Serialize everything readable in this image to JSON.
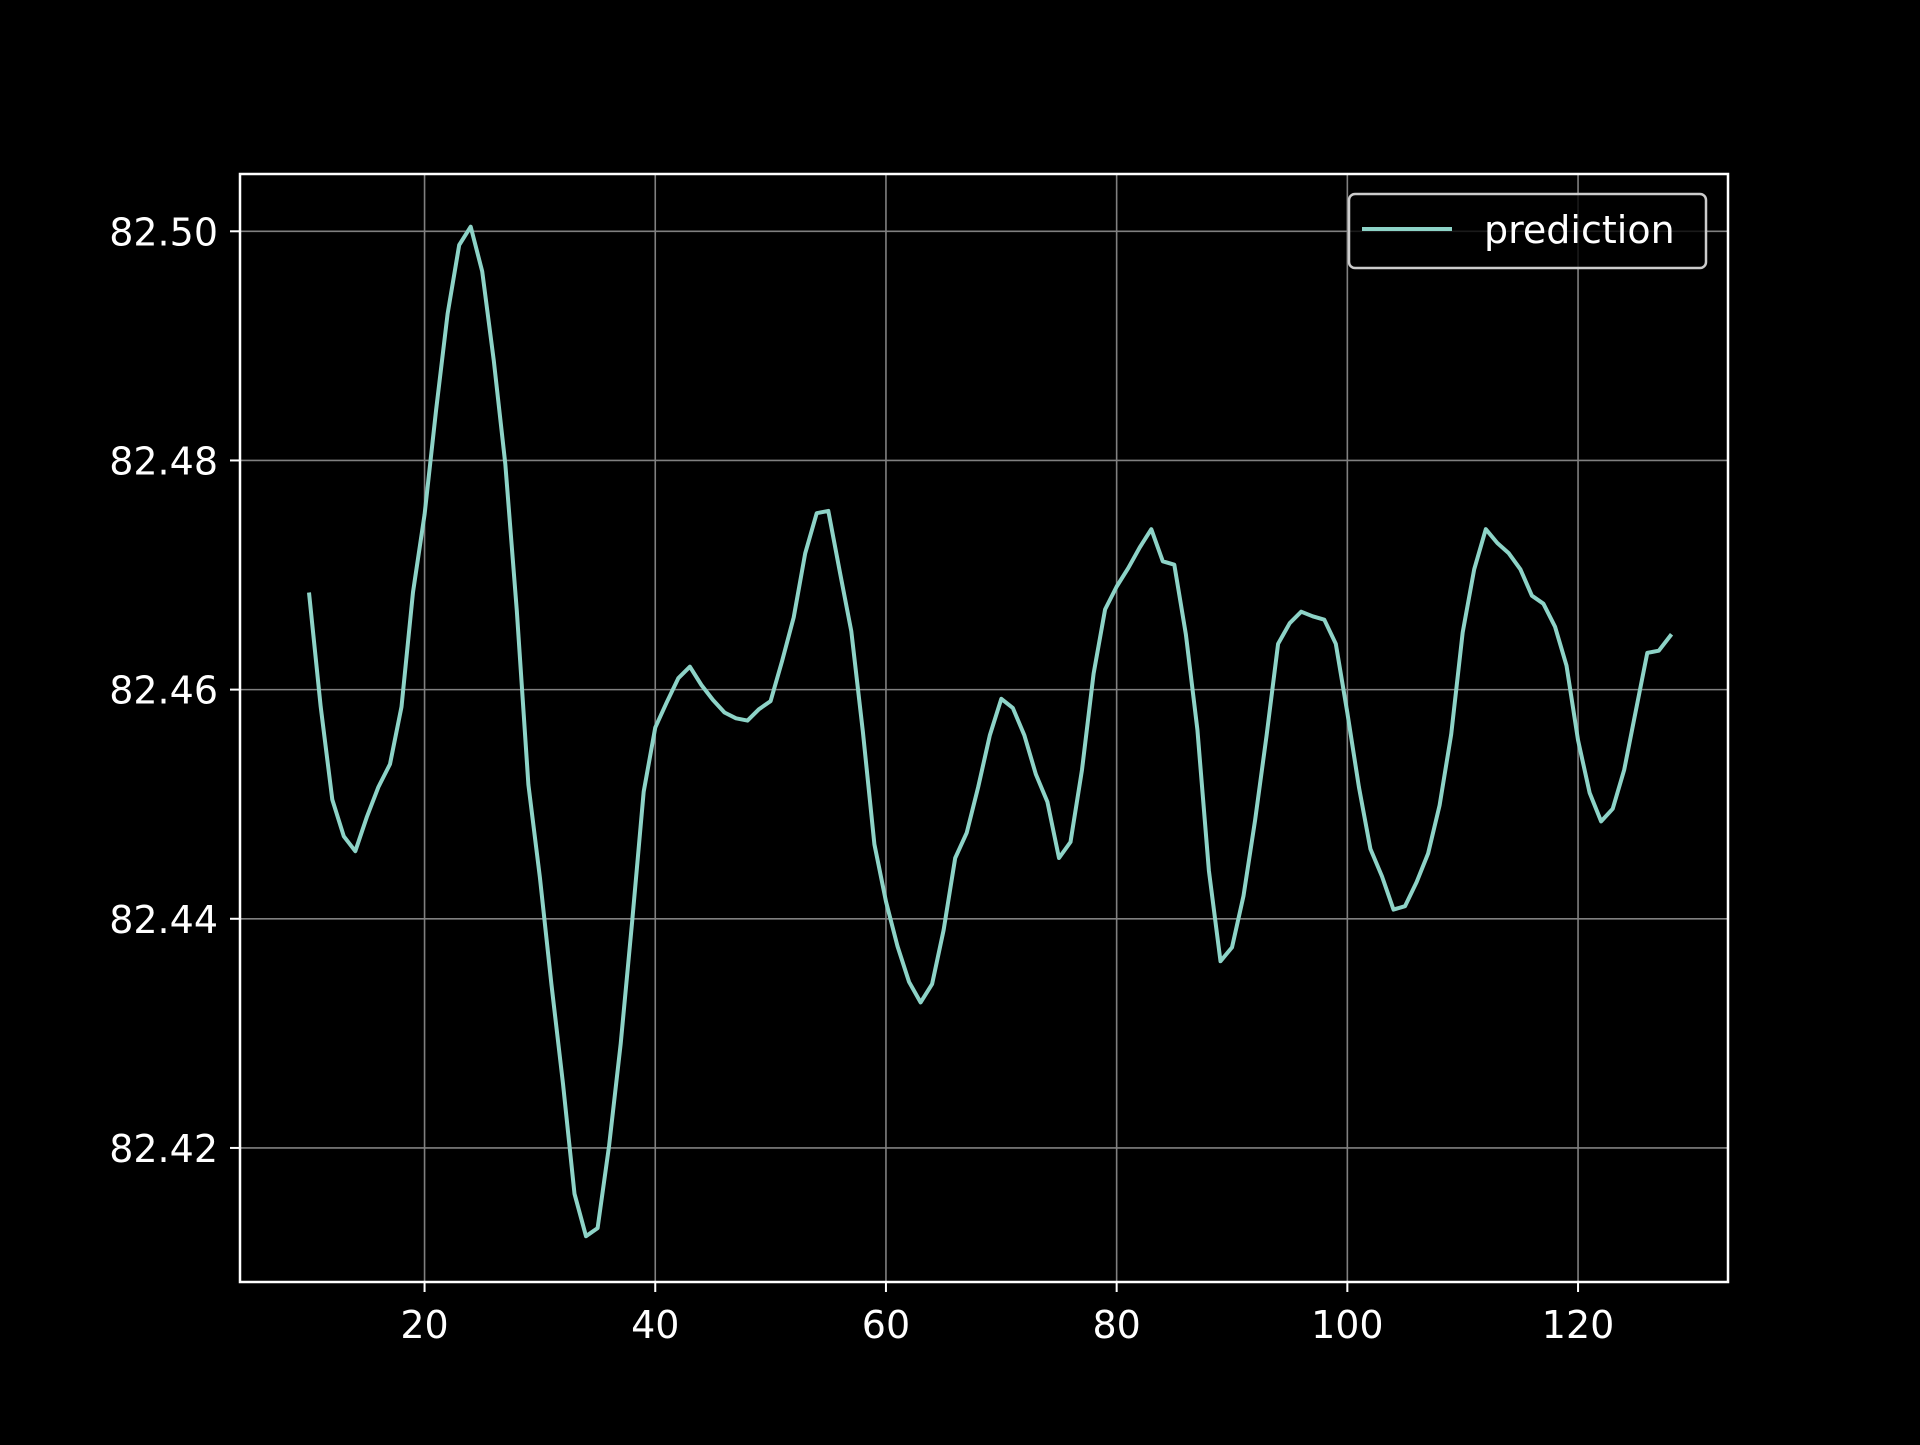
{
  "chart_data": {
    "type": "line",
    "title": "",
    "xlabel": "",
    "ylabel": "",
    "xlim": [
      4,
      133
    ],
    "ylim": [
      82.4083,
      82.505
    ],
    "x_ticks": [
      20,
      40,
      60,
      80,
      100,
      120
    ],
    "x_tick_labels": [
      "20",
      "40",
      "60",
      "80",
      "100",
      "120"
    ],
    "y_ticks": [
      82.42,
      82.44,
      82.46,
      82.48,
      82.5
    ],
    "y_tick_labels": [
      "82.42",
      "82.44",
      "82.46",
      "82.48",
      "82.50"
    ],
    "grid": true,
    "legend": {
      "position": "top-right"
    },
    "colors": {
      "background": "#000000",
      "axes": "#ffffff",
      "grid": "#808080",
      "line": "#8dd3c7"
    },
    "series": [
      {
        "name": "prediction",
        "color": "#8dd3c7",
        "x": [
          10,
          11,
          12,
          13,
          14,
          15,
          16,
          17,
          18,
          19,
          20,
          21,
          22,
          23,
          24,
          25,
          26,
          27,
          28,
          29,
          30,
          31,
          32,
          33,
          34,
          35,
          36,
          37,
          38,
          39,
          40,
          41,
          42,
          43,
          44,
          45,
          46,
          47,
          48,
          49,
          50,
          51,
          52,
          53,
          54,
          55,
          56,
          57,
          58,
          59,
          60,
          61,
          62,
          63,
          64,
          65,
          66,
          67,
          68,
          69,
          70,
          71,
          72,
          73,
          74,
          75,
          76,
          77,
          78,
          79,
          80,
          81,
          82,
          83,
          84,
          85,
          86,
          87,
          88,
          89,
          90,
          91,
          92,
          93,
          94,
          95,
          96,
          97,
          98,
          99,
          100,
          101,
          102,
          103,
          104,
          105,
          106,
          107,
          108,
          109,
          110,
          111,
          112,
          113,
          114,
          115,
          116,
          117,
          118,
          119,
          120,
          121,
          122,
          123,
          124,
          125,
          126,
          127,
          128
        ],
        "values": [
          82.4683,
          82.4585,
          82.4504,
          82.4472,
          82.4459,
          82.4489,
          82.4515,
          82.4535,
          82.4585,
          82.4685,
          82.4753,
          82.4844,
          82.4928,
          82.4988,
          82.5004,
          82.4965,
          82.4887,
          82.4797,
          82.4669,
          82.4517,
          82.4436,
          82.4343,
          82.4256,
          82.416,
          82.4123,
          82.413,
          82.4202,
          82.4291,
          82.4398,
          82.4511,
          82.4567,
          82.4589,
          82.461,
          82.462,
          82.4604,
          82.4591,
          82.458,
          82.4575,
          82.4573,
          82.4583,
          82.459,
          82.4625,
          82.4663,
          82.4719,
          82.4754,
          82.4756,
          82.4703,
          82.4651,
          82.4563,
          82.4465,
          82.4415,
          82.4376,
          82.4345,
          82.4327,
          82.4343,
          82.439,
          82.4453,
          82.4475,
          82.4515,
          82.456,
          82.4592,
          82.4584,
          82.456,
          82.4526,
          82.4502,
          82.4453,
          82.4467,
          82.453,
          82.4614,
          82.467,
          82.469,
          82.4706,
          82.4724,
          82.474,
          82.4712,
          82.4709,
          82.4648,
          82.4565,
          82.4442,
          82.4363,
          82.4375,
          82.442,
          82.4486,
          82.456,
          82.464,
          82.4658,
          82.4668,
          82.4664,
          82.4661,
          82.464,
          82.458,
          82.4515,
          82.4461,
          82.4437,
          82.4408,
          82.4411,
          82.4432,
          82.4457,
          82.4499,
          82.4561,
          82.465,
          82.4705,
          82.474,
          82.4728,
          82.4719,
          82.4705,
          82.4682,
          82.4675,
          82.4655,
          82.4621,
          82.4556,
          82.451,
          82.4485,
          82.4496,
          82.453,
          82.4581,
          82.4632,
          82.4634,
          82.4647
        ]
      }
    ]
  }
}
